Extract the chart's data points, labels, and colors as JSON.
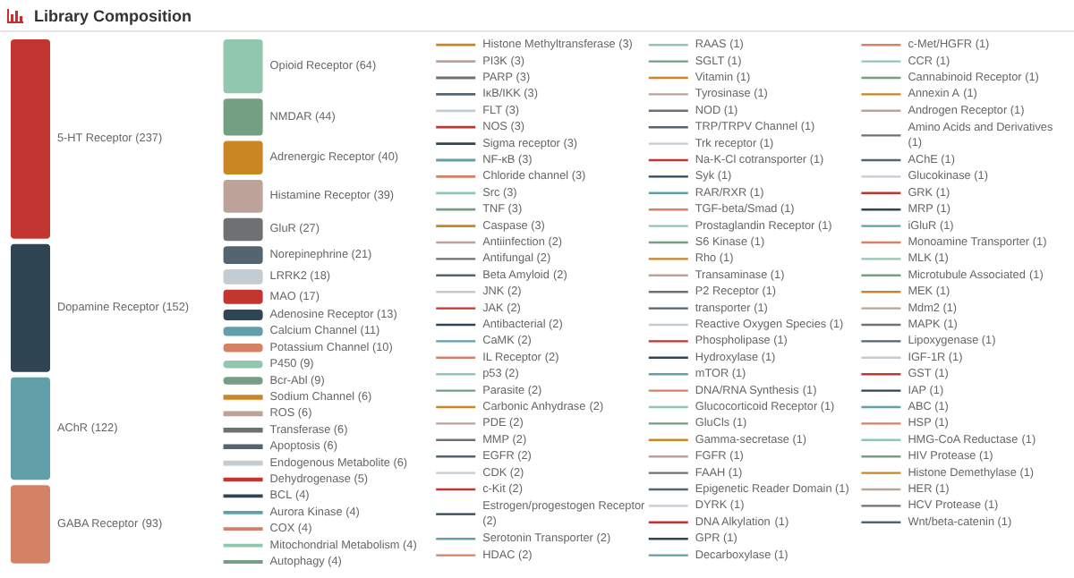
{
  "chart_data": {
    "type": "other",
    "title": "Library Composition",
    "value_labels": [
      "(237)",
      "(152)",
      "(122)",
      "(93)",
      "(64)",
      "(44)",
      "(40)",
      "(39)",
      "(27)",
      "(21)",
      "(18)",
      "(17)",
      "(13)",
      "(11)",
      "(10)",
      "(9)",
      "(9)",
      "(6)",
      "(6)",
      "(6)",
      "(6)",
      "(6)",
      "(5)",
      "(4)",
      "(4)",
      "(4)",
      "(4)",
      "(4)",
      "(3)",
      "(3)",
      "(3)",
      "(3)",
      "(3)",
      "(3)",
      "(3)",
      "(3)",
      "(3)",
      "(3)",
      "(3)",
      "(3)",
      "(2)",
      "(2)",
      "(2)",
      "(2)",
      "(2)",
      "(2)",
      "(2)",
      "(2)",
      "(2)",
      "(2)",
      "(2)",
      "(2)",
      "(2)",
      "(2)",
      "(2)",
      "(2)",
      "(2)",
      "(2)",
      "(2)",
      "(1)",
      "(1)",
      "(1)",
      "(1)",
      "(1)",
      "(1)",
      "(1)",
      "(1)",
      "(1)",
      "(1)",
      "(1)",
      "(1)",
      "(1)",
      "(1)",
      "(1)",
      "(1)",
      "(1)",
      "(1)",
      "(1)",
      "(1)",
      "(1)",
      "(1)",
      "(1)",
      "(1)",
      "(1)",
      "(1)",
      "(1)",
      "(1)",
      "(1)",
      "(1)",
      "(1)",
      "(1)",
      "(1)",
      "(1)",
      "(1)",
      "(1)",
      "(1)",
      "(1)",
      "(1)",
      "(1)",
      "(1)",
      "(1)",
      "(1)",
      "(1)",
      "(1)",
      "(1)",
      "(1)",
      "(1)",
      "(1)",
      "(1)",
      "(1)",
      "(1)",
      "(1)",
      "(1)",
      "(1)",
      "(1)",
      "(1)",
      "(1)",
      "(1)",
      "(1)",
      "(1)"
    ],
    "categories": [
      "5-HT Receptor",
      "Dopamine Receptor",
      "AChR",
      "GABA Receptor",
      "Opioid Receptor",
      "NMDAR",
      "Adrenergic Receptor",
      "Histamine Receptor",
      "GluR",
      "Norepinephrine",
      "LRRK2",
      "MAO",
      "Adenosine Receptor",
      "Calcium Channel",
      "Potassium Channel",
      "P450",
      "Bcr-Abl",
      "Sodium Channel",
      "ROS",
      "Transferase",
      "Apoptosis",
      "Endogenous Metabolite",
      "Dehydrogenase",
      "BCL",
      "Aurora Kinase",
      "COX",
      "Mitochondrial Metabolism",
      "Autophagy",
      "Histone Methyltransferase",
      "PI3K",
      "PARP",
      "IκB/IKK",
      "FLT",
      "NOS",
      "Sigma receptor",
      "NF-κB",
      "Chloride channel",
      "Src",
      "TNF",
      "Caspase",
      "Antiinfection",
      "Antifungal",
      "Beta Amyloid",
      "JNK",
      "JAK",
      "Antibacterial",
      "CaMK",
      "IL Receptor",
      "p53",
      "Parasite",
      "Carbonic Anhydrase",
      "PDE",
      "MMP",
      "EGFR",
      "CDK",
      "c-Kit",
      "Estrogen/progestogen Receptor",
      "Serotonin Transporter",
      "HDAC",
      "RAAS",
      "SGLT",
      "Vitamin",
      "Tyrosinase",
      "NOD",
      "TRP/TRPV Channel",
      "Trk receptor",
      "Na-K-Cl cotransporter",
      "Syk",
      "RAR/RXR",
      "TGF-beta/Smad",
      "Prostaglandin Receptor",
      "S6 Kinase",
      "Rho",
      "Transaminase",
      "P2 Receptor",
      "transporter",
      "Reactive Oxygen Species",
      "Phospholipase",
      "Hydroxylase",
      "mTOR",
      "DNA/RNA Synthesis",
      "Glucocorticoid Receptor",
      "GluCls",
      "Gamma-secretase",
      "FGFR",
      "FAAH",
      "Epigenetic Reader Domain",
      "DYRK",
      "DNA Alkylation",
      "GPR",
      "Decarboxylase",
      "c-Met/HGFR",
      "CCR",
      "Cannabinoid Receptor",
      "Annexin A",
      "Androgen Receptor",
      "Amino Acids and Derivatives",
      "AChE",
      "Glucokinase",
      "GRK",
      "MRP",
      "iGluR",
      "Monoamine Transporter",
      "MLK",
      "Microtubule Associated",
      "MEK",
      "Mdm2",
      "MAPK",
      "Lipoxygenase",
      "IGF-1R",
      "GST",
      "IAP",
      "ABC",
      "HSP",
      "HMG-CoA Reductase",
      "HIV Protease",
      "Histone Demethylase",
      "HER",
      "HCV Protease",
      "Wnt/beta-catenin"
    ],
    "values": [
      237,
      152,
      122,
      93,
      64,
      44,
      40,
      39,
      27,
      21,
      18,
      17,
      13,
      11,
      10,
      9,
      9,
      6,
      6,
      6,
      6,
      6,
      5,
      4,
      4,
      4,
      4,
      4,
      3,
      3,
      3,
      3,
      3,
      3,
      3,
      3,
      3,
      3,
      3,
      3,
      2,
      2,
      2,
      2,
      2,
      2,
      2,
      2,
      2,
      2,
      2,
      2,
      2,
      2,
      2,
      2,
      2,
      2,
      2,
      1,
      1,
      1,
      1,
      1,
      1,
      1,
      1,
      1,
      1,
      1,
      1,
      1,
      1,
      1,
      1,
      1,
      1,
      1,
      1,
      1,
      1,
      1,
      1,
      1,
      1,
      1,
      1,
      1,
      1,
      1,
      1,
      1,
      1,
      1,
      1,
      1,
      1,
      1,
      1,
      1,
      1,
      1,
      1,
      1,
      1,
      1,
      1,
      1,
      1,
      1,
      1,
      1,
      1,
      1,
      1,
      1,
      1,
      1,
      1,
      1
    ],
    "colors": [
      "#c23531",
      "#2f4554",
      "#61a0a8",
      "#d48265",
      "#91c7ae",
      "#749f83",
      "#ca8622",
      "#bda29a",
      "#6e7074",
      "#546570",
      "#c4ccd3",
      "#c23531",
      "#2f4554",
      "#61a0a8",
      "#d48265",
      "#91c7ae",
      "#749f83",
      "#ca8622",
      "#bda29a",
      "#6e7074",
      "#546570",
      "#c4ccd3",
      "#c23531",
      "#2f4554",
      "#61a0a8",
      "#d48265",
      "#91c7ae",
      "#749f83",
      "#ca8622",
      "#bda29a",
      "#6e7074",
      "#546570",
      "#c4ccd3",
      "#c23531",
      "#2f4554",
      "#61a0a8",
      "#d48265",
      "#91c7ae",
      "#749f83",
      "#ca8622",
      "#bda29a",
      "#6e7074",
      "#546570",
      "#c4ccd3",
      "#c23531",
      "#2f4554",
      "#61a0a8",
      "#d48265",
      "#91c7ae",
      "#749f83",
      "#ca8622",
      "#bda29a",
      "#6e7074",
      "#546570",
      "#c4ccd3",
      "#c23531",
      "#2f4554",
      "#61a0a8",
      "#d48265",
      "#91c7ae",
      "#749f83",
      "#ca8622",
      "#bda29a",
      "#6e7074",
      "#546570",
      "#c4ccd3",
      "#c23531",
      "#2f4554",
      "#61a0a8",
      "#d48265",
      "#91c7ae",
      "#749f83",
      "#ca8622",
      "#bda29a",
      "#6e7074",
      "#546570",
      "#c4ccd3",
      "#c23531",
      "#2f4554",
      "#61a0a8",
      "#d48265",
      "#91c7ae",
      "#749f83",
      "#ca8622",
      "#bda29a",
      "#6e7074",
      "#546570",
      "#c4ccd3",
      "#c23531",
      "#2f4554",
      "#61a0a8",
      "#d48265",
      "#91c7ae",
      "#749f83",
      "#ca8622",
      "#bda29a",
      "#6e7074",
      "#546570",
      "#c4ccd3",
      "#c23531",
      "#2f4554",
      "#61a0a8",
      "#d48265",
      "#91c7ae",
      "#749f83",
      "#ca8622",
      "#bda29a",
      "#6e7074",
      "#546570",
      "#c4ccd3",
      "#c23531",
      "#2f4554",
      "#61a0a8",
      "#d48265",
      "#91c7ae",
      "#749f83",
      "#ca8622",
      "#bda29a",
      "#6e7074",
      "#546570"
    ]
  }
}
